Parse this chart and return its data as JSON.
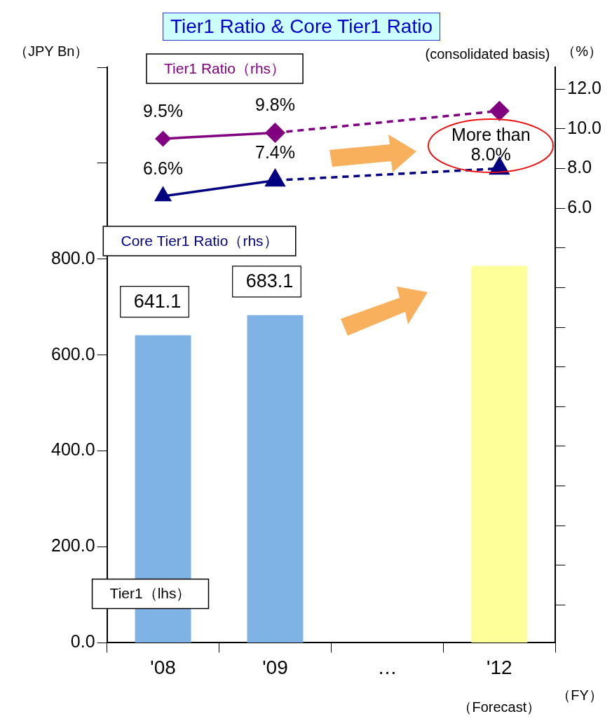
{
  "chart_data": {
    "type": "bar",
    "title": "Tier1 Ratio & Core Tier1 Ratio",
    "subtitle": "(consolidated basis)",
    "xlabel": "（FY）",
    "ylabel": "（JPY Bn）",
    "y2label": "（%）",
    "categories": [
      "'08",
      "'09",
      "…",
      "'12"
    ],
    "series": [
      {
        "name": "Tier1（lhs）",
        "axis": "y",
        "colors": [
          "#7fb2e5",
          "#7fb2e5",
          "#7fb2e5",
          "#ffff99"
        ],
        "values": [
          641.1,
          683.1,
          null,
          786
        ],
        "value_labels": [
          "641.1",
          "683.1",
          null,
          null
        ]
      },
      {
        "name": "Tier1 Ratio（rhs）",
        "type": "line",
        "axis": "y2",
        "color": "#800080",
        "marker": "diamond",
        "line_style": "solid",
        "values": [
          9.5,
          9.8,
          null,
          null
        ],
        "value_labels": [
          "9.5%",
          "9.8%",
          null,
          null
        ]
      },
      {
        "type": "line",
        "axis": "y2",
        "color": "#800080",
        "marker": "diamond",
        "line_style": "dashed",
        "values": [
          null,
          9.8,
          null,
          10.9
        ]
      },
      {
        "name": "Core Tier1 Ratio（rhs）",
        "type": "line",
        "axis": "y2",
        "color": "#000080",
        "marker": "triangle",
        "line_style": "solid",
        "values": [
          6.6,
          7.4,
          null,
          null
        ],
        "value_labels": [
          "6.6%",
          "7.4%",
          null,
          null
        ]
      },
      {
        "type": "line",
        "axis": "y2",
        "color": "#000080",
        "marker": "triangle",
        "line_style": "dashed",
        "values": [
          null,
          7.4,
          null,
          8.0
        ]
      }
    ],
    "ylim": [
      0,
      1200
    ],
    "yticks": [
      {
        "value": 0,
        "label": "0.0"
      },
      {
        "value": 200,
        "label": "200.0"
      },
      {
        "value": 400,
        "label": "400.0"
      },
      {
        "value": 600,
        "label": "600.0"
      },
      {
        "value": 800,
        "label": "800.0"
      },
      {
        "value": 1000,
        "label": null
      },
      {
        "value": 1200,
        "label": null
      }
    ],
    "y2lim": [
      -15.9,
      13.1
    ],
    "y2ticks": [
      {
        "value": -14,
        "label": null
      },
      {
        "value": -12,
        "label": null
      },
      {
        "value": -10,
        "label": null
      },
      {
        "value": -8,
        "label": null
      },
      {
        "value": -6,
        "label": null
      },
      {
        "value": -4,
        "label": null
      },
      {
        "value": -2,
        "label": null
      },
      {
        "value": 0,
        "label": null
      },
      {
        "value": 2,
        "label": null
      },
      {
        "value": 4,
        "label": null
      },
      {
        "value": 6,
        "label": "6.0"
      },
      {
        "value": 8,
        "label": "8.0"
      },
      {
        "value": 10,
        "label": "10.0"
      },
      {
        "value": 12,
        "label": "12.0"
      }
    ],
    "annotations": [
      "More than 8.0%",
      "（Forecast）"
    ],
    "grid": false
  }
}
